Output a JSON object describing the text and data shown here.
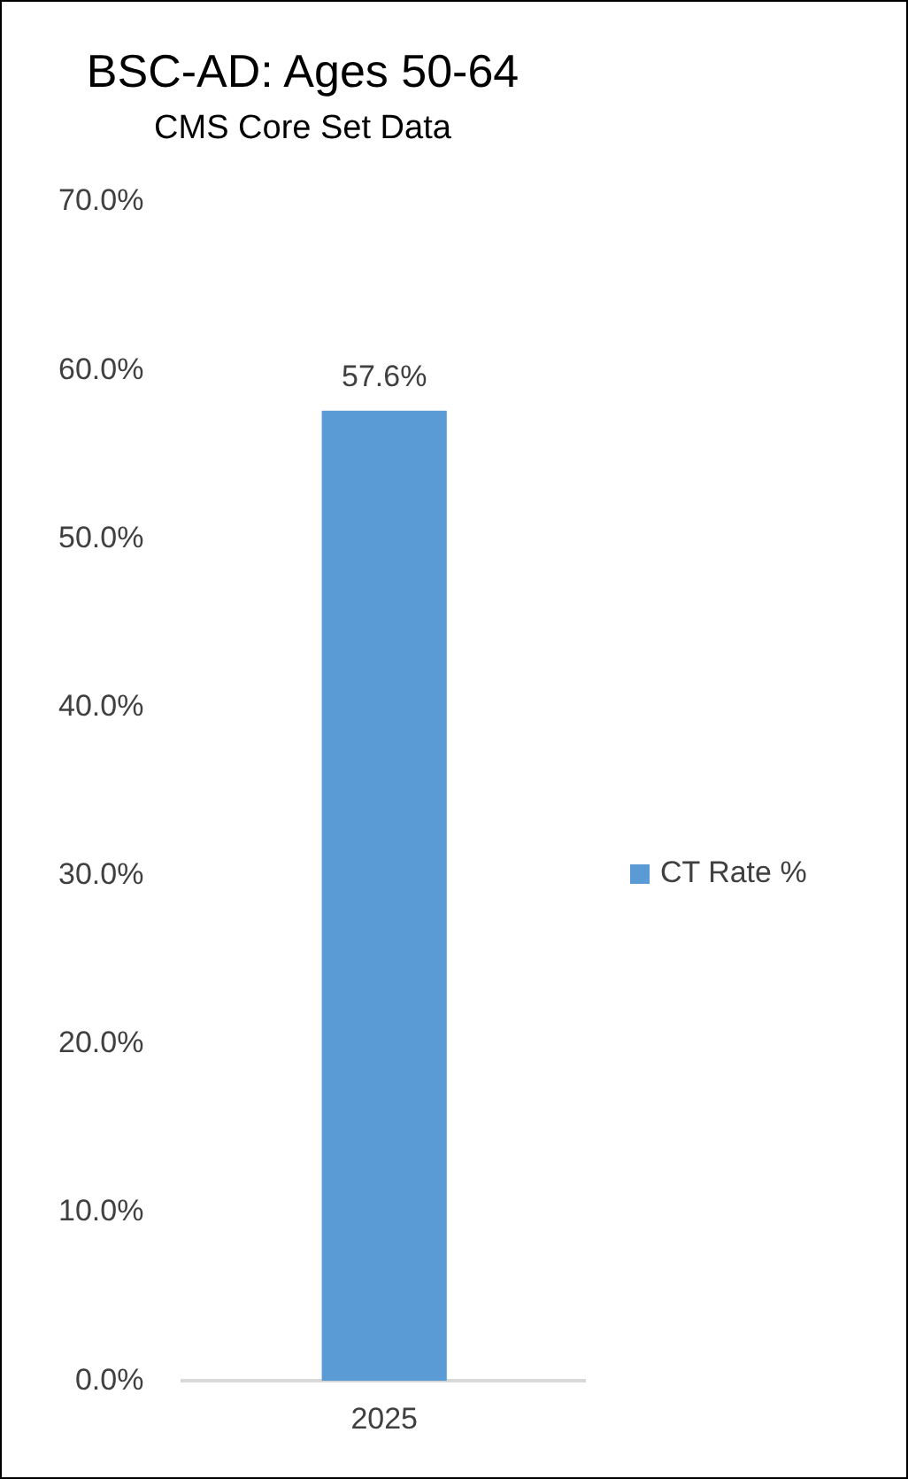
{
  "chart_data": {
    "type": "bar",
    "title": "BSC-AD: Ages 50-64",
    "subtitle": "CMS Core Set Data",
    "categories": [
      "2025"
    ],
    "series": [
      {
        "name": "CT Rate %",
        "color": "#5b9bd5",
        "values": [
          57.6
        ],
        "value_labels": [
          "57.6%"
        ]
      }
    ],
    "ylim": [
      0,
      70
    ],
    "yticks": [
      {
        "value": 0,
        "label": "0.0%"
      },
      {
        "value": 10,
        "label": "10.0%"
      },
      {
        "value": 20,
        "label": "20.0%"
      },
      {
        "value": 30,
        "label": "30.0%"
      },
      {
        "value": 40,
        "label": "40.0%"
      },
      {
        "value": 50,
        "label": "50.0%"
      },
      {
        "value": 60,
        "label": "60.0%"
      },
      {
        "value": 70,
        "label": "70.0%"
      }
    ],
    "grid": false,
    "legend": "right"
  }
}
